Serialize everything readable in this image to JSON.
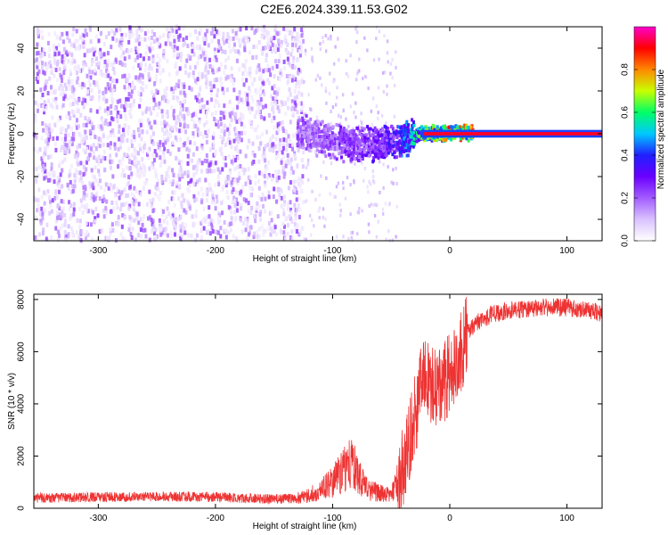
{
  "title": "C2E6.2024.339.11.53.G02",
  "chart_data": [
    {
      "type": "heatmap",
      "xlabel": "Height of straight line (km)",
      "ylabel": "Frequency (Hz)",
      "xlim": [
        -355,
        130
      ],
      "ylim": [
        -50,
        50
      ],
      "xticks": [
        -300,
        -200,
        -100,
        0,
        100
      ],
      "yticks": [
        -40,
        -20,
        0,
        20,
        40
      ],
      "colorbar": {
        "label": "Normalized spectral amplitude",
        "range": [
          0,
          1
        ],
        "ticks": [
          0.0,
          0.2,
          0.4,
          0.6,
          0.8
        ],
        "colormap": [
          "#ffffff",
          "#d9c2ff",
          "#a35cff",
          "#6a00ff",
          "#2020ff",
          "#00c8ff",
          "#00ff66",
          "#c8ff00",
          "#ff8800",
          "#ff0000",
          "#ff00cc"
        ]
      },
      "signal_trace": {
        "x": [
          -130,
          -110,
          -95,
          -80,
          -65,
          -50,
          -40,
          -30,
          -20,
          -10,
          0,
          5,
          20,
          60,
          130
        ],
        "freq": [
          1,
          -2,
          -4,
          -5,
          -5,
          -4,
          -3,
          -1,
          0,
          0,
          0,
          1,
          0,
          0,
          0
        ],
        "amplitude": [
          0.25,
          0.25,
          0.3,
          0.3,
          0.35,
          0.4,
          0.5,
          0.6,
          0.75,
          0.85,
          0.9,
          0.9,
          0.95,
          0.95,
          0.95
        ]
      },
      "noise_region_x": [
        -355,
        -125
      ]
    },
    {
      "type": "line",
      "xlabel": "Height of straight line (km)",
      "ylabel": "SNR (10 * v/v)",
      "xlim": [
        -355,
        130
      ],
      "ylim": [
        0,
        8200
      ],
      "xticks": [
        -300,
        -200,
        -100,
        0,
        100
      ],
      "yticks": [
        0,
        2000,
        4000,
        6000,
        8000
      ],
      "color": "#ee3333",
      "series": [
        {
          "x": [
            -355,
            -300,
            -250,
            -200,
            -150,
            -130,
            -120,
            -110,
            -100,
            -90,
            -85,
            -80,
            -75,
            -70,
            -60,
            -50,
            -45,
            -40,
            -35,
            -30,
            -25,
            -20,
            -15,
            -10,
            -5,
            0,
            5,
            10,
            15,
            20,
            25,
            30,
            40,
            50,
            60,
            80,
            100,
            120,
            130
          ],
          "values": [
            400,
            420,
            450,
            430,
            350,
            380,
            500,
            700,
            1000,
            1500,
            1700,
            1500,
            1000,
            700,
            600,
            500,
            1100,
            1500,
            2500,
            3500,
            4500,
            5000,
            4800,
            4600,
            4800,
            5200,
            5600,
            6000,
            6700,
            7000,
            7200,
            7300,
            7500,
            7600,
            7600,
            7700,
            7700,
            7600,
            7400
          ]
        }
      ]
    }
  ]
}
